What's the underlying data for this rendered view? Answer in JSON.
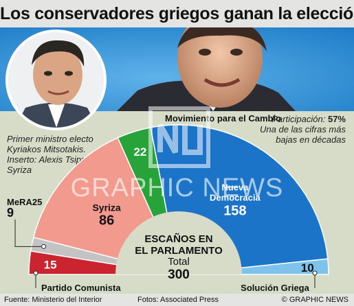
{
  "title": "Los conservadores griegos ganan la elección",
  "caption": "Primer ministro electo Kyriakos Mitsotakis. Inserto: Alexis Tsipras de Syriza",
  "turnout": {
    "label": "Participación:",
    "value": "57%",
    "note": "Una de las cifras más bajas en décadas"
  },
  "chart_data": {
    "type": "parliament-semicircle",
    "center_title_line1": "ESCAÑOS EN",
    "center_title_line2": "EL PARLAMENTO",
    "total_label": "Total",
    "total": 300,
    "parties": [
      {
        "name": "Partido Comunista",
        "seats": 15,
        "color": "#c9242f"
      },
      {
        "name": "MeRA25",
        "seats": 9,
        "color": "#c3c3c3"
      },
      {
        "name": "Syriza",
        "seats": 86,
        "color": "#f29a8e"
      },
      {
        "name": "Movimiento para el Cambio",
        "seats": 22,
        "color": "#27a33a"
      },
      {
        "name": "Nueva Democracia",
        "seats": 158,
        "color": "#1c74c9"
      },
      {
        "name": "Solución Griega",
        "seats": 10,
        "color": "#7ec3ed"
      }
    ]
  },
  "footer": {
    "source": "Fuente: Ministerio del Interior",
    "photos": "Fotos: Associated Press",
    "credit": "© GRAPHIC NEWS"
  },
  "watermark": "GRAPHIC NEWS",
  "colors": {
    "accent_blue": "#2c8ed6",
    "background": "#d7dcc9"
  }
}
